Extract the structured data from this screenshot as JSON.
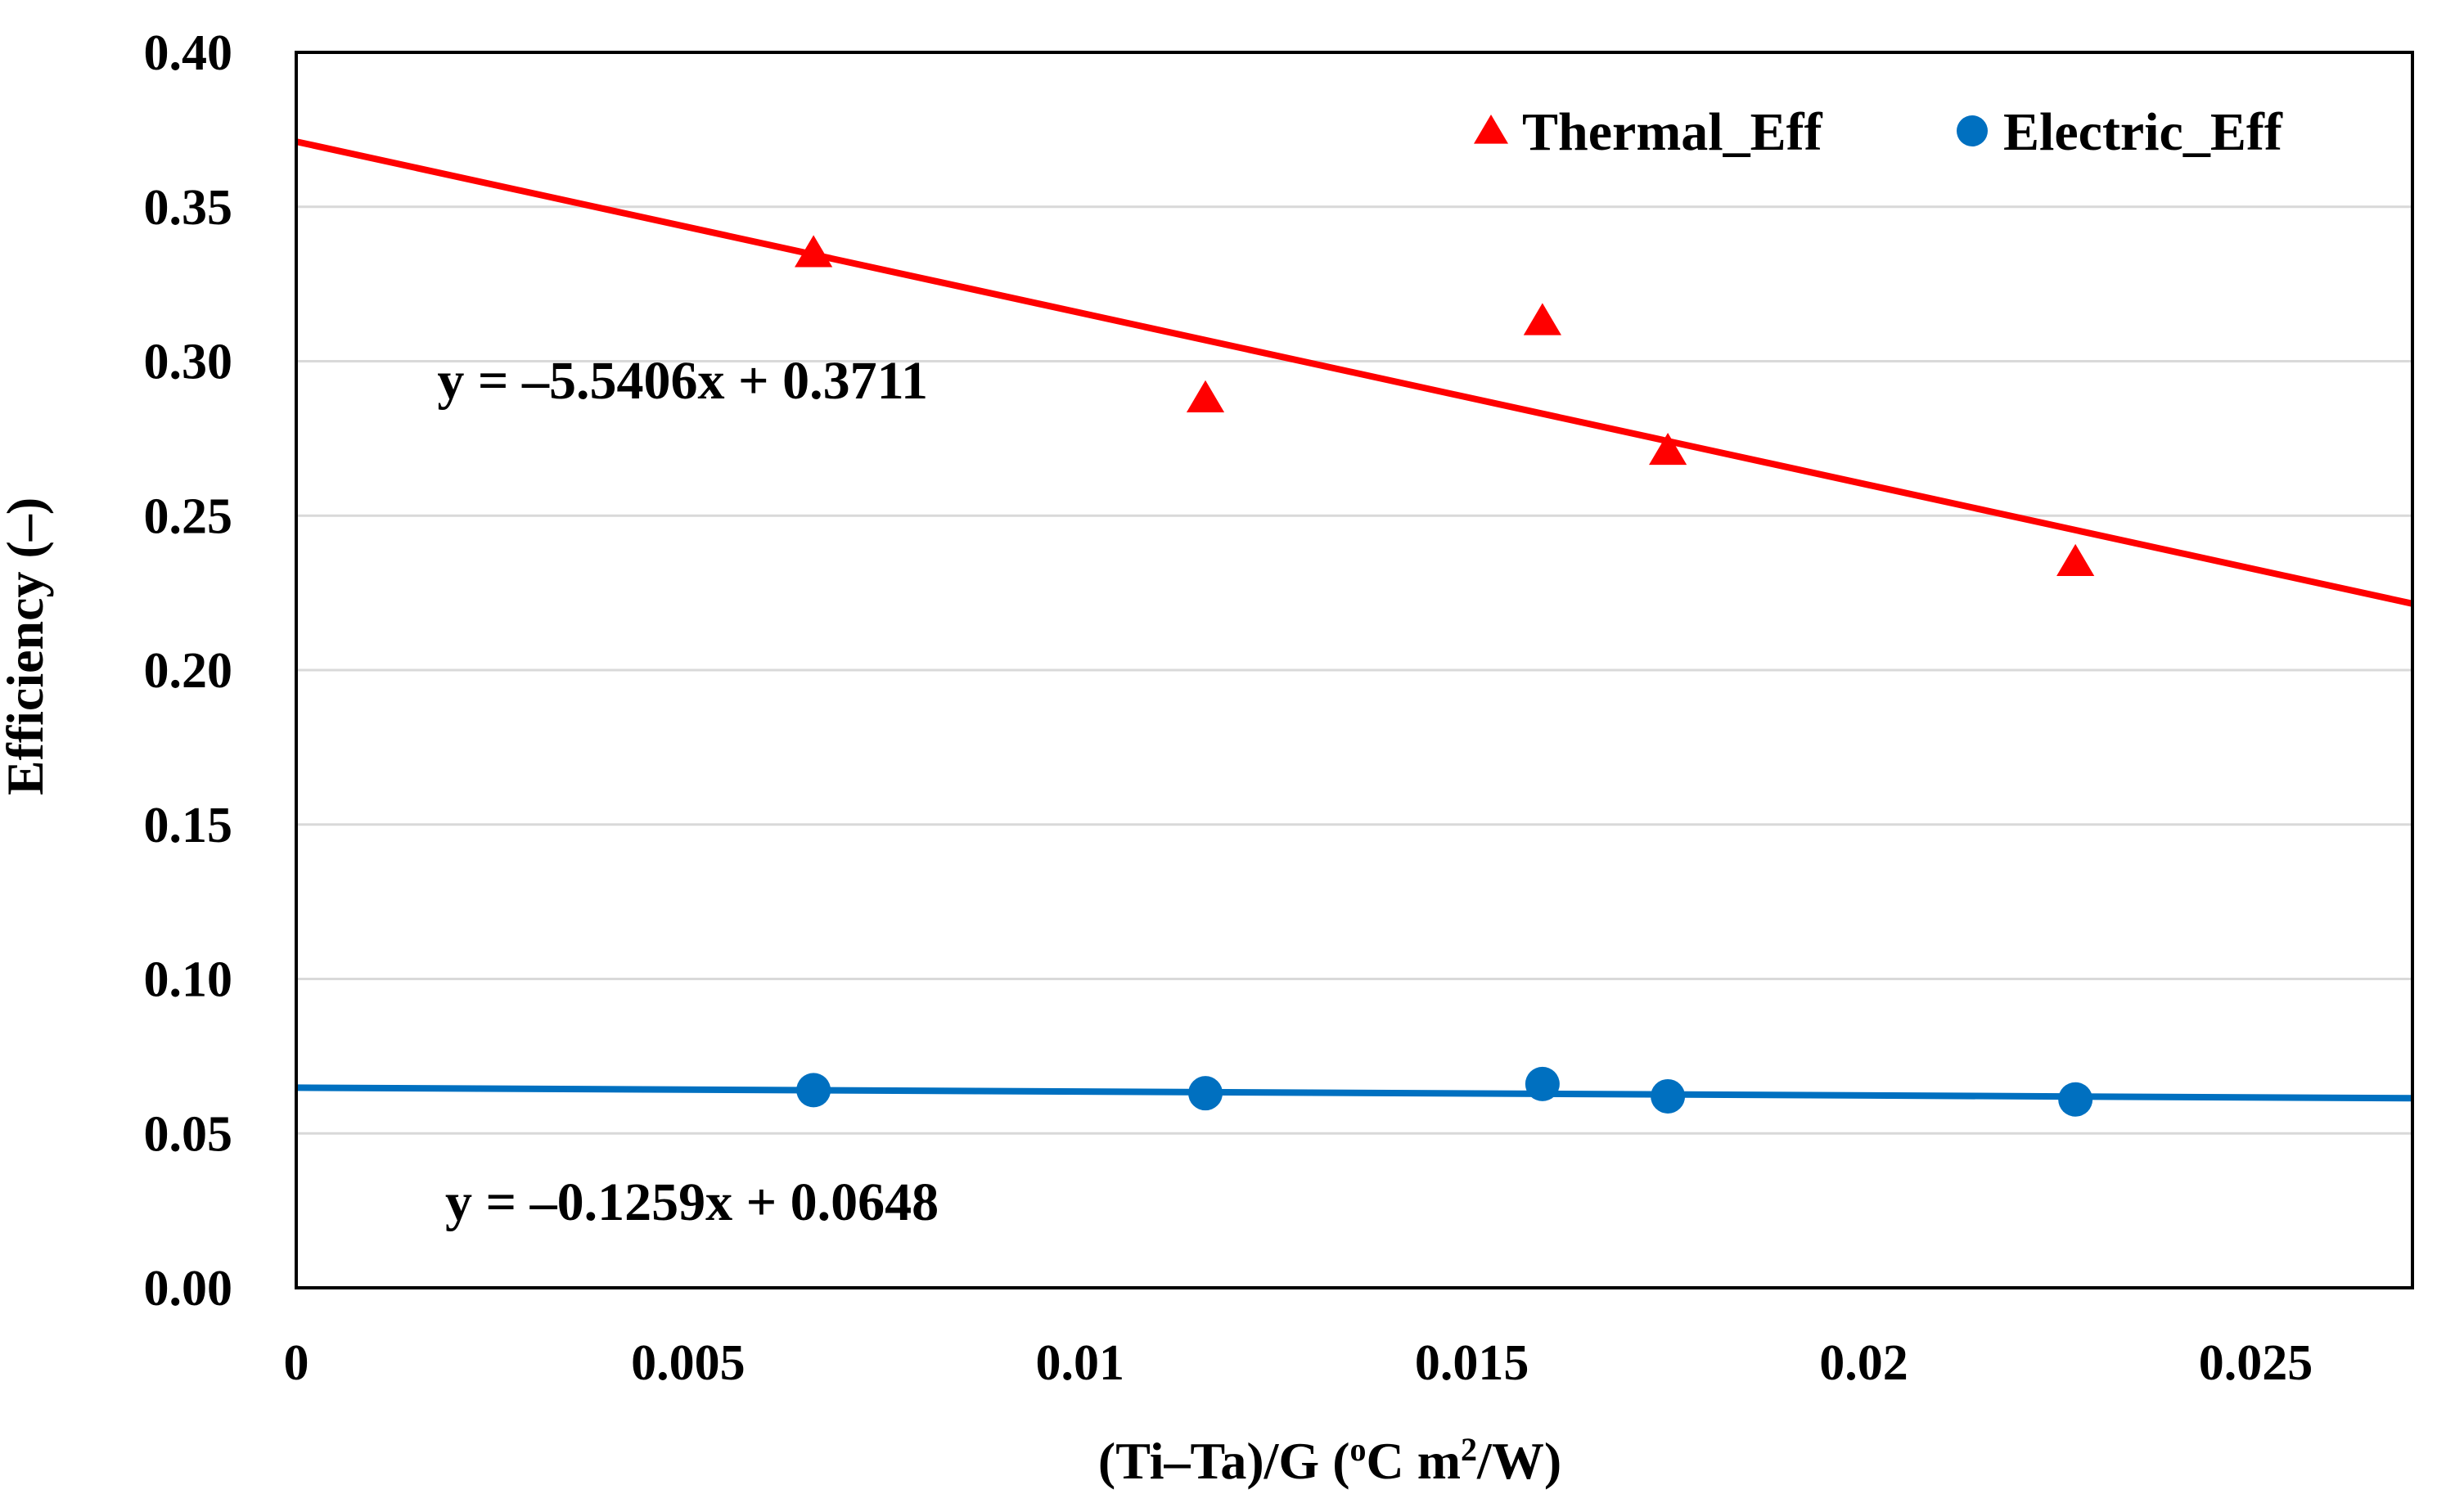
{
  "chart_data": {
    "type": "scatter",
    "xlabel": "(Ti–Ta)/G  (°C m²/W)",
    "xlabel_parts": {
      "pre": "(Ti–Ta)/G  (",
      "sup1": "o",
      "mid": "C m",
      "sup2": "2",
      "post": "/W)"
    },
    "ylabel": "Efficiency (–)",
    "xlim": [
      0,
      0.027
    ],
    "ylim": [
      0,
      0.4
    ],
    "x_ticks": [
      0,
      0.005,
      0.01,
      0.015,
      0.02,
      0.025
    ],
    "x_tick_labels": [
      "0",
      "0.005",
      "0.01",
      "0.015",
      "0.02",
      "0.025"
    ],
    "y_ticks": [
      0,
      0.05,
      0.1,
      0.15,
      0.2,
      0.25,
      0.3,
      0.35,
      0.4
    ],
    "y_tick_labels": [
      "0.00",
      "0.05",
      "0.10",
      "0.15",
      "0.20",
      "0.25",
      "0.30",
      "0.35",
      "0.40"
    ],
    "grid": "horizontal",
    "legend_position": "top-right",
    "series": [
      {
        "name": "Thermal_Eff",
        "marker": "triangle",
        "color": "#ff0000",
        "x": [
          0.0066,
          0.0116,
          0.0159,
          0.0175,
          0.0227
        ],
        "y": [
          0.335,
          0.288,
          0.313,
          0.271,
          0.235
        ],
        "trendline": {
          "slope": -5.5406,
          "intercept": 0.3711,
          "label": "y = –5.5406x + 0.3711",
          "label_pos": {
            "x": 0.0018,
            "y": 0.288
          }
        }
      },
      {
        "name": "Electric_Eff",
        "marker": "circle",
        "color": "#0070c0",
        "x": [
          0.0066,
          0.0116,
          0.0159,
          0.0175,
          0.0227
        ],
        "y": [
          0.064,
          0.063,
          0.066,
          0.062,
          0.061
        ],
        "trendline": {
          "slope": -0.1259,
          "intercept": 0.0648,
          "label": "y = –0.1259x + 0.0648",
          "label_pos": {
            "x": 0.0019,
            "y": 0.022
          }
        }
      }
    ]
  }
}
